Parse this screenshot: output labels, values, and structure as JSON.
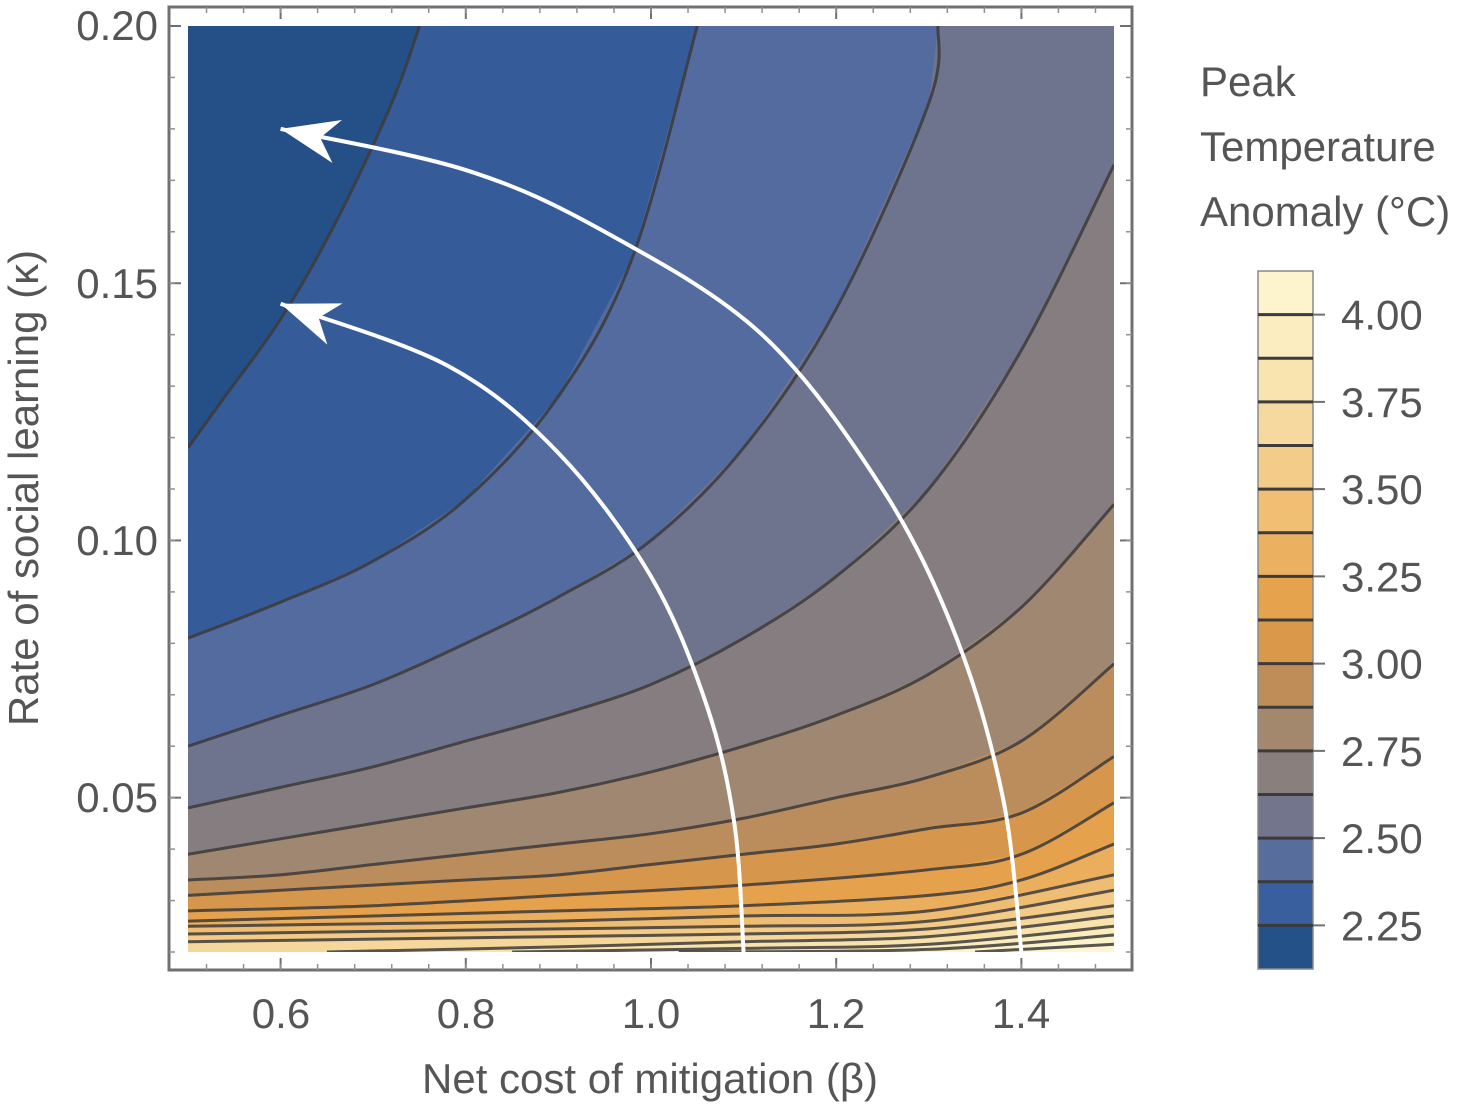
{
  "chart_data": {
    "type": "contour",
    "xlabel": "Net cost of mitigation (β)",
    "ylabel": "Rate of social learning (κ)",
    "xlim": [
      0.5,
      1.5
    ],
    "ylim": [
      0.02,
      0.2
    ],
    "xticks": [
      0.6,
      0.8,
      1.0,
      1.2,
      1.4
    ],
    "xtick_labels": [
      "0.6",
      "0.8",
      "1.0",
      "1.2",
      "1.4"
    ],
    "yticks": [
      0.05,
      0.1,
      0.15,
      0.2
    ],
    "ytick_labels": [
      "0.05",
      "0.10",
      "0.15",
      "0.20"
    ],
    "legend": {
      "title": [
        "Peak",
        "Temperature",
        "Anomaly (°C)"
      ],
      "range": [
        2.125,
        4.125
      ],
      "levels": [
        2.125,
        2.25,
        2.375,
        2.5,
        2.625,
        2.75,
        2.875,
        3.0,
        3.125,
        3.25,
        3.375,
        3.5,
        3.625,
        3.75,
        3.875,
        4.0
      ],
      "tick_values": [
        2.25,
        2.5,
        2.75,
        3.0,
        3.25,
        3.5,
        3.75,
        4.0
      ],
      "tick_labels": [
        "2.25",
        "2.50",
        "2.75",
        "3.00",
        "3.25",
        "3.50",
        "3.75",
        "4.00"
      ]
    },
    "contours": [
      {
        "level": 2.25,
        "points": [
          [
            0.5,
            0.118
          ],
          [
            0.54,
            0.128
          ],
          [
            0.6,
            0.143
          ],
          [
            0.66,
            0.162
          ],
          [
            0.72,
            0.185
          ],
          [
            0.75,
            0.2
          ]
        ]
      },
      {
        "level": 2.375,
        "points": [
          [
            0.5,
            0.081
          ],
          [
            0.6,
            0.088
          ],
          [
            0.7,
            0.096
          ],
          [
            0.8,
            0.108
          ],
          [
            0.9,
            0.128
          ],
          [
            0.98,
            0.155
          ],
          [
            1.05,
            0.2
          ]
        ]
      },
      {
        "level": 2.5,
        "points": [
          [
            0.5,
            0.06
          ],
          [
            0.6,
            0.066
          ],
          [
            0.7,
            0.072
          ],
          [
            0.8,
            0.08
          ],
          [
            0.9,
            0.089
          ],
          [
            1.0,
            0.1
          ],
          [
            1.1,
            0.118
          ],
          [
            1.2,
            0.145
          ],
          [
            1.3,
            0.185
          ],
          [
            1.31,
            0.2
          ]
        ]
      },
      {
        "level": 2.625,
        "points": [
          [
            0.5,
            0.048
          ],
          [
            0.6,
            0.052
          ],
          [
            0.7,
            0.056
          ],
          [
            0.8,
            0.061
          ],
          [
            0.9,
            0.066
          ],
          [
            1.0,
            0.072
          ],
          [
            1.1,
            0.081
          ],
          [
            1.2,
            0.093
          ],
          [
            1.3,
            0.11
          ],
          [
            1.4,
            0.137
          ],
          [
            1.5,
            0.173
          ]
        ]
      },
      {
        "level": 2.75,
        "points": [
          [
            0.5,
            0.039
          ],
          [
            0.6,
            0.042
          ],
          [
            0.7,
            0.045
          ],
          [
            0.8,
            0.048
          ],
          [
            0.9,
            0.051
          ],
          [
            1.0,
            0.055
          ],
          [
            1.1,
            0.06
          ],
          [
            1.2,
            0.066
          ],
          [
            1.3,
            0.074
          ],
          [
            1.4,
            0.087
          ],
          [
            1.5,
            0.107
          ]
        ]
      },
      {
        "level": 2.875,
        "points": [
          [
            0.5,
            0.034
          ],
          [
            0.6,
            0.035
          ],
          [
            0.7,
            0.037
          ],
          [
            0.8,
            0.039
          ],
          [
            0.9,
            0.041
          ],
          [
            1.0,
            0.043
          ],
          [
            1.1,
            0.046
          ],
          [
            1.2,
            0.05
          ],
          [
            1.3,
            0.054
          ],
          [
            1.4,
            0.061
          ],
          [
            1.5,
            0.076
          ]
        ]
      },
      {
        "level": 3.0,
        "points": [
          [
            0.5,
            0.031
          ],
          [
            0.6,
            0.032
          ],
          [
            0.7,
            0.033
          ],
          [
            0.8,
            0.034
          ],
          [
            0.9,
            0.035
          ],
          [
            1.0,
            0.037
          ],
          [
            1.1,
            0.039
          ],
          [
            1.2,
            0.041
          ],
          [
            1.3,
            0.044
          ],
          [
            1.4,
            0.047
          ],
          [
            1.5,
            0.058
          ]
        ]
      },
      {
        "level": 3.125,
        "points": [
          [
            0.5,
            0.028
          ],
          [
            0.7,
            0.029
          ],
          [
            0.9,
            0.031
          ],
          [
            1.1,
            0.033
          ],
          [
            1.3,
            0.036
          ],
          [
            1.4,
            0.039
          ],
          [
            1.5,
            0.049
          ]
        ]
      },
      {
        "level": 3.25,
        "points": [
          [
            0.5,
            0.026
          ],
          [
            0.7,
            0.027
          ],
          [
            0.9,
            0.028
          ],
          [
            1.1,
            0.029
          ],
          [
            1.3,
            0.031
          ],
          [
            1.4,
            0.034
          ],
          [
            1.5,
            0.041
          ]
        ]
      },
      {
        "level": 3.375,
        "points": [
          [
            0.5,
            0.025
          ],
          [
            0.7,
            0.0255
          ],
          [
            0.9,
            0.026
          ],
          [
            1.1,
            0.027
          ],
          [
            1.3,
            0.028
          ],
          [
            1.5,
            0.035
          ]
        ]
      },
      {
        "level": 3.5,
        "points": [
          [
            0.5,
            0.0235
          ],
          [
            0.7,
            0.024
          ],
          [
            0.9,
            0.0245
          ],
          [
            1.1,
            0.025
          ],
          [
            1.3,
            0.026
          ],
          [
            1.5,
            0.032
          ]
        ]
      },
      {
        "level": 3.625,
        "points": [
          [
            0.5,
            0.022
          ],
          [
            0.7,
            0.0225
          ],
          [
            0.9,
            0.023
          ],
          [
            1.1,
            0.0235
          ],
          [
            1.3,
            0.0245
          ],
          [
            1.5,
            0.029
          ]
        ]
      },
      {
        "level": 3.75,
        "points": [
          [
            0.65,
            0.02
          ],
          [
            0.9,
            0.021
          ],
          [
            1.1,
            0.022
          ],
          [
            1.3,
            0.023
          ],
          [
            1.5,
            0.027
          ]
        ]
      },
      {
        "level": 3.875,
        "points": [
          [
            0.85,
            0.02
          ],
          [
            1.1,
            0.0207
          ],
          [
            1.3,
            0.0215
          ],
          [
            1.5,
            0.025
          ]
        ]
      },
      {
        "level": 4.0,
        "points": [
          [
            1.03,
            0.02
          ],
          [
            1.3,
            0.0205
          ],
          [
            1.5,
            0.0233
          ]
        ]
      },
      {
        "level": 4.125,
        "points": [
          [
            1.35,
            0.02
          ],
          [
            1.5,
            0.0215
          ]
        ]
      }
    ],
    "arrows": [
      {
        "points": [
          [
            1.1,
            0.02
          ],
          [
            1.09,
            0.045
          ],
          [
            1.06,
            0.068
          ],
          [
            1.0,
            0.093
          ],
          [
            0.9,
            0.117
          ],
          [
            0.78,
            0.134
          ],
          [
            0.6,
            0.146
          ]
        ]
      },
      {
        "points": [
          [
            1.4,
            0.02
          ],
          [
            1.38,
            0.05
          ],
          [
            1.33,
            0.081
          ],
          [
            1.25,
            0.11
          ],
          [
            1.12,
            0.14
          ],
          [
            0.95,
            0.16
          ],
          [
            0.8,
            0.172
          ],
          [
            0.6,
            0.18
          ]
        ]
      }
    ]
  }
}
